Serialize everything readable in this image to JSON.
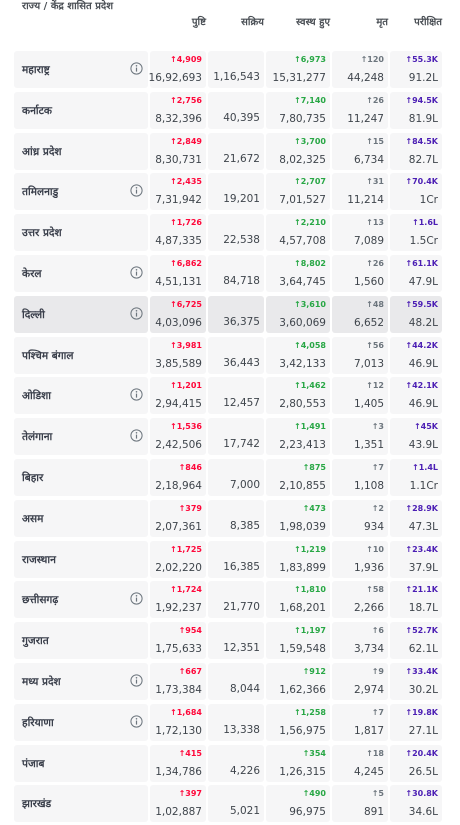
{
  "header": {
    "state": "राज्य / केंद्र शासित प्रदेश",
    "columns": [
      "पुष्टि",
      "सक्रिय",
      "स्वस्थ हुए",
      "मृत",
      "परीक्षित"
    ]
  },
  "rows": [
    {
      "state": "महाराष्ट्र",
      "info": true,
      "confirmed_delta": "↑4,909",
      "confirmed": "16,92,693",
      "active": "1,16,543",
      "recovered_delta": "↑6,973",
      "recovered": "15,31,277",
      "deaths_delta": "↑120",
      "deaths": "44,248",
      "tested_delta": "↑55.3K",
      "tested": "91.2L"
    },
    {
      "state": "कर्नाटक",
      "info": false,
      "confirmed_delta": "↑2,756",
      "confirmed": "8,32,396",
      "active": "40,395",
      "recovered_delta": "↑7,140",
      "recovered": "7,80,735",
      "deaths_delta": "↑26",
      "deaths": "11,247",
      "tested_delta": "↑94.5K",
      "tested": "81.9L"
    },
    {
      "state": "आंध्र प्रदेश",
      "info": false,
      "confirmed_delta": "↑2,849",
      "confirmed": "8,30,731",
      "active": "21,672",
      "recovered_delta": "↑3,700",
      "recovered": "8,02,325",
      "deaths_delta": "↑15",
      "deaths": "6,734",
      "tested_delta": "↑84.5K",
      "tested": "82.7L"
    },
    {
      "state": "तमिलनाडु",
      "info": true,
      "confirmed_delta": "↑2,435",
      "confirmed": "7,31,942",
      "active": "19,201",
      "recovered_delta": "↑2,707",
      "recovered": "7,01,527",
      "deaths_delta": "↑31",
      "deaths": "11,214",
      "tested_delta": "↑70.4K",
      "tested": "1Cr"
    },
    {
      "state": "उत्तर प्रदेश",
      "info": false,
      "confirmed_delta": "↑1,726",
      "confirmed": "4,87,335",
      "active": "22,538",
      "recovered_delta": "↑2,210",
      "recovered": "4,57,708",
      "deaths_delta": "↑13",
      "deaths": "7,089",
      "tested_delta": "↑1.6L",
      "tested": "1.5Cr"
    },
    {
      "state": "केरल",
      "info": true,
      "confirmed_delta": "↑6,862",
      "confirmed": "4,51,131",
      "active": "84,718",
      "recovered_delta": "↑8,802",
      "recovered": "3,64,745",
      "deaths_delta": "↑26",
      "deaths": "1,560",
      "tested_delta": "↑61.1K",
      "tested": "47.9L"
    },
    {
      "state": "दिल्ली",
      "info": true,
      "highlight": true,
      "confirmed_delta": "↑6,725",
      "confirmed": "4,03,096",
      "active": "36,375",
      "recovered_delta": "↑3,610",
      "recovered": "3,60,069",
      "deaths_delta": "↑48",
      "deaths": "6,652",
      "tested_delta": "↑59.5K",
      "tested": "48.2L"
    },
    {
      "state": "पश्चिम बंगाल",
      "info": false,
      "confirmed_delta": "↑3,981",
      "confirmed": "3,85,589",
      "active": "36,443",
      "recovered_delta": "↑4,058",
      "recovered": "3,42,133",
      "deaths_delta": "↑56",
      "deaths": "7,013",
      "tested_delta": "↑44.2K",
      "tested": "46.9L"
    },
    {
      "state": "ओडिशा",
      "info": true,
      "confirmed_delta": "↑1,201",
      "confirmed": "2,94,415",
      "active": "12,457",
      "recovered_delta": "↑1,462",
      "recovered": "2,80,553",
      "deaths_delta": "↑12",
      "deaths": "1,405",
      "tested_delta": "↑42.1K",
      "tested": "46.9L"
    },
    {
      "state": "तेलंगाना",
      "info": true,
      "confirmed_delta": "↑1,536",
      "confirmed": "2,42,506",
      "active": "17,742",
      "recovered_delta": "↑1,491",
      "recovered": "2,23,413",
      "deaths_delta": "↑3",
      "deaths": "1,351",
      "tested_delta": "↑45K",
      "tested": "43.9L"
    },
    {
      "state": "बिहार",
      "info": false,
      "confirmed_delta": "↑846",
      "confirmed": "2,18,964",
      "active": "7,000",
      "recovered_delta": "↑875",
      "recovered": "2,10,855",
      "deaths_delta": "↑7",
      "deaths": "1,108",
      "tested_delta": "↑1.4L",
      "tested": "1.1Cr"
    },
    {
      "state": "असम",
      "info": false,
      "confirmed_delta": "↑379",
      "confirmed": "2,07,361",
      "active": "8,385",
      "recovered_delta": "↑473",
      "recovered": "1,98,039",
      "deaths_delta": "↑2",
      "deaths": "934",
      "tested_delta": "↑28.9K",
      "tested": "47.3L"
    },
    {
      "state": "राजस्थान",
      "info": false,
      "confirmed_delta": "↑1,725",
      "confirmed": "2,02,220",
      "active": "16,385",
      "recovered_delta": "↑1,219",
      "recovered": "1,83,899",
      "deaths_delta": "↑10",
      "deaths": "1,936",
      "tested_delta": "↑23.4K",
      "tested": "37.9L"
    },
    {
      "state": "छत्तीसगढ़",
      "info": true,
      "confirmed_delta": "↑1,724",
      "confirmed": "1,92,237",
      "active": "21,770",
      "recovered_delta": "↑1,810",
      "recovered": "1,68,201",
      "deaths_delta": "↑58",
      "deaths": "2,266",
      "tested_delta": "↑21.1K",
      "tested": "18.7L"
    },
    {
      "state": "गुजरात",
      "info": false,
      "confirmed_delta": "↑954",
      "confirmed": "1,75,633",
      "active": "12,351",
      "recovered_delta": "↑1,197",
      "recovered": "1,59,548",
      "deaths_delta": "↑6",
      "deaths": "3,734",
      "tested_delta": "↑52.7K",
      "tested": "62.1L"
    },
    {
      "state": "मध्य प्रदेश",
      "info": true,
      "confirmed_delta": "↑667",
      "confirmed": "1,73,384",
      "active": "8,044",
      "recovered_delta": "↑912",
      "recovered": "1,62,366",
      "deaths_delta": "↑9",
      "deaths": "2,974",
      "tested_delta": "↑33.4K",
      "tested": "30.2L"
    },
    {
      "state": "हरियाणा",
      "info": true,
      "confirmed_delta": "↑1,684",
      "confirmed": "1,72,130",
      "active": "13,338",
      "recovered_delta": "↑1,258",
      "recovered": "1,56,975",
      "deaths_delta": "↑7",
      "deaths": "1,817",
      "tested_delta": "↑19.8K",
      "tested": "27.1L"
    },
    {
      "state": "पंजाब",
      "info": false,
      "confirmed_delta": "↑415",
      "confirmed": "1,34,786",
      "active": "4,226",
      "recovered_delta": "↑354",
      "recovered": "1,26,315",
      "deaths_delta": "↑18",
      "deaths": "4,245",
      "tested_delta": "↑20.4K",
      "tested": "26.5L"
    },
    {
      "state": "झारखंड",
      "info": false,
      "confirmed_delta": "↑397",
      "confirmed": "1,02,887",
      "active": "5,021",
      "recovered_delta": "↑490",
      "recovered": "96,975",
      "deaths_delta": "↑5",
      "deaths": "891",
      "tested_delta": "↑30.8K",
      "tested": "34.6L"
    }
  ]
}
